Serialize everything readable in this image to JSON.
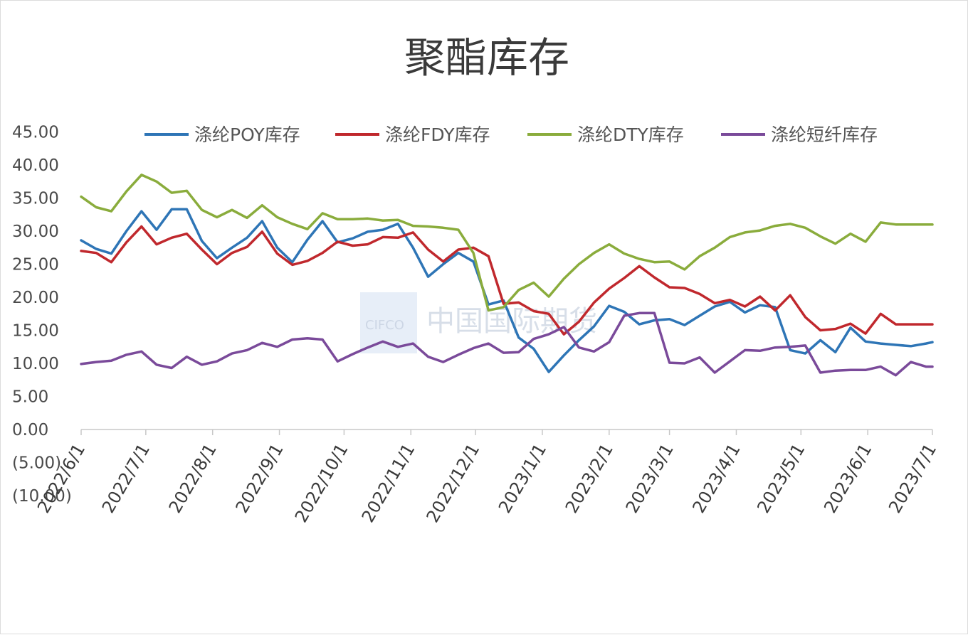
{
  "chart_data": {
    "type": "line",
    "title": "聚酯库存",
    "xlabel": "",
    "ylabel": "",
    "ylim": [
      -10,
      45
    ],
    "yticks": [
      "(10.00)",
      "(5.00)",
      "0.00",
      "5.00",
      "10.00",
      "15.00",
      "20.00",
      "25.00",
      "30.00",
      "35.00",
      "40.00",
      "45.00"
    ],
    "ytick_values": [
      -10,
      -5,
      0,
      5,
      10,
      15,
      20,
      25,
      30,
      35,
      40,
      45
    ],
    "xticks": [
      "2022/6/1",
      "2022/7/1",
      "2022/8/1",
      "2022/9/1",
      "2022/10/1",
      "2022/11/1",
      "2022/12/1",
      "2023/1/1",
      "2023/2/1",
      "2023/3/1",
      "2023/4/1",
      "2023/5/1",
      "2023/6/1",
      "2023/7/1"
    ],
    "grid": false,
    "legend_position": "top",
    "x": [
      "2022/6/1",
      "2022/6/8",
      "2022/6/15",
      "2022/6/22",
      "2022/6/29",
      "2022/7/6",
      "2022/7/13",
      "2022/7/20",
      "2022/7/27",
      "2022/8/3",
      "2022/8/10",
      "2022/8/17",
      "2022/8/24",
      "2022/8/31",
      "2022/9/7",
      "2022/9/14",
      "2022/9/21",
      "2022/9/28",
      "2022/10/5",
      "2022/10/12",
      "2022/10/19",
      "2022/10/26",
      "2022/11/2",
      "2022/11/9",
      "2022/11/16",
      "2022/11/23",
      "2022/11/30",
      "2022/12/7",
      "2022/12/14",
      "2022/12/21",
      "2022/12/28",
      "2023/1/4",
      "2023/1/11",
      "2023/1/18",
      "2023/1/25",
      "2023/2/1",
      "2023/2/8",
      "2023/2/15",
      "2023/2/22",
      "2023/3/1",
      "2023/3/8",
      "2023/3/15",
      "2023/3/22",
      "2023/3/29",
      "2023/4/5",
      "2023/4/12",
      "2023/4/19",
      "2023/4/26",
      "2023/5/3",
      "2023/5/10",
      "2023/5/17",
      "2023/5/24",
      "2023/5/31",
      "2023/6/7",
      "2023/6/14",
      "2023/6/21",
      "2023/6/28",
      "2023/7/1"
    ],
    "series": [
      {
        "name": "涤纶POY库存",
        "color": "#2e75b6",
        "values": [
          28.6,
          27.3,
          26.6,
          30.0,
          33.0,
          30.2,
          33.3,
          33.3,
          28.5,
          25.9,
          27.5,
          29.0,
          31.5,
          27.5,
          25.3,
          28.7,
          31.5,
          28.3,
          28.9,
          29.9,
          30.2,
          31.1,
          27.5,
          23.1,
          25.0,
          26.7,
          25.4,
          18.9,
          19.5,
          13.9,
          12.2,
          8.7,
          11.2,
          13.5,
          15.6,
          18.7,
          17.8,
          15.9,
          16.5,
          16.7,
          15.8,
          17.2,
          18.6,
          19.3,
          17.7,
          18.8,
          18.5,
          12.0,
          11.5,
          13.5,
          11.7,
          15.4,
          13.3,
          13.0,
          12.8,
          12.6,
          13.0,
          13.2
        ]
      },
      {
        "name": "涤纶FDY库存",
        "color": "#c0282d",
        "values": [
          27.0,
          26.7,
          25.3,
          28.3,
          30.7,
          28.0,
          29.0,
          29.6,
          27.2,
          25.0,
          26.7,
          27.6,
          29.9,
          26.6,
          24.9,
          25.5,
          26.7,
          28.4,
          27.8,
          28.0,
          29.1,
          29.0,
          29.8,
          27.2,
          25.4,
          27.2,
          27.5,
          26.2,
          19.0,
          19.2,
          17.9,
          17.5,
          14.4,
          16.3,
          19.2,
          21.3,
          22.9,
          24.7,
          23.0,
          21.5,
          21.4,
          20.5,
          19.1,
          19.6,
          18.6,
          20.1,
          18.0,
          20.3,
          17.0,
          15.0,
          15.2,
          16.0,
          14.5,
          17.5,
          15.9,
          15.9,
          15.9,
          15.9
        ]
      },
      {
        "name": "涤纶DTY库存",
        "color": "#8aac3c",
        "values": [
          35.2,
          33.6,
          33.0,
          36.0,
          38.5,
          37.5,
          35.8,
          36.1,
          33.2,
          32.1,
          33.2,
          32.0,
          33.9,
          32.1,
          31.1,
          30.3,
          32.7,
          31.8,
          31.8,
          31.9,
          31.6,
          31.7,
          30.8,
          30.7,
          30.5,
          30.2,
          26.7,
          18.0,
          18.5,
          21.1,
          22.2,
          20.1,
          22.8,
          25.0,
          26.7,
          28.0,
          26.6,
          25.8,
          25.3,
          25.4,
          24.2,
          26.2,
          27.5,
          29.1,
          29.8,
          30.1,
          30.8,
          31.1,
          30.5,
          29.2,
          28.1,
          29.6,
          28.4,
          31.3,
          31.0,
          31.0,
          31.0,
          31.0
        ]
      },
      {
        "name": "涤纶短纤库存",
        "color": "#7a4a9a",
        "values": [
          9.9,
          10.2,
          10.4,
          11.3,
          11.8,
          9.8,
          9.3,
          11.0,
          9.8,
          10.3,
          11.5,
          12.0,
          13.1,
          12.5,
          13.6,
          13.8,
          13.6,
          10.3,
          11.4,
          12.4,
          13.3,
          12.5,
          13.0,
          11.0,
          10.2,
          11.3,
          12.3,
          13.0,
          11.6,
          11.7,
          13.7,
          14.4,
          15.5,
          12.4,
          11.8,
          13.2,
          17.2,
          17.6,
          17.6,
          10.1,
          10.0,
          10.9,
          8.6,
          10.3,
          12.0,
          11.9,
          12.4,
          12.5,
          12.7,
          8.6,
          8.9,
          9.0,
          9.0,
          9.5,
          8.2,
          10.2,
          9.5,
          9.5
        ]
      }
    ]
  },
  "watermark": {
    "logo_text": "CIFCO",
    "text": "中国国际期货"
  }
}
